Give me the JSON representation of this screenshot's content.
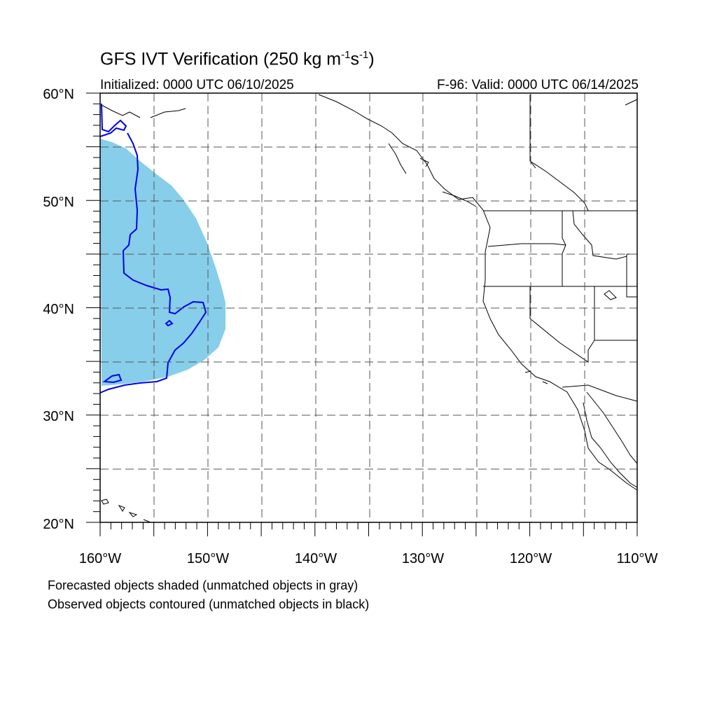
{
  "title": {
    "main": "GFS IVT Verification (250 kg m",
    "exp1": "-1",
    "mid": "s",
    "exp2": "-1",
    "close": ")"
  },
  "initialized": "Initialized: 0000 UTC 06/10/2025",
  "valid": "F-96: Valid: 0000 UTC 06/14/2025",
  "footnotes": [
    "Forecasted objects shaded (unmatched objects in gray)",
    "Observed objects contoured (unmatched objects in black)"
  ],
  "map": {
    "lon_range": [
      -160,
      -110
    ],
    "lat_range": [
      20,
      60
    ],
    "grid_lines": "dashed every 5°",
    "lat_labels": [
      "60°N",
      "50°N",
      "40°N",
      "30°N",
      "20°N"
    ],
    "lon_labels": [
      "160°W",
      "150°W",
      "140°W",
      "130°W",
      "120°W",
      "110°W"
    ],
    "colors": {
      "forecast_fill": "#87ceea",
      "observed_contour": "#0000ee",
      "coastline": "#000000",
      "grid": "#555555"
    }
  }
}
